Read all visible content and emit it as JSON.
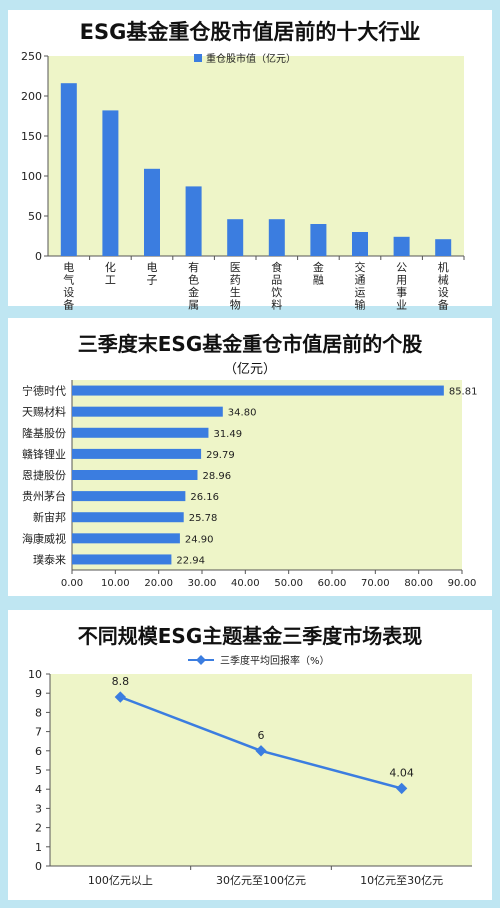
{
  "chart_data": [
    {
      "type": "bar",
      "title": "ESG基金重仓股市值居前的十大行业",
      "legend": "重仓股市值（亿元）",
      "categories": [
        "电气设备",
        "化工",
        "电子",
        "有色金属",
        "医药生物",
        "食品饮料",
        "金融",
        "交通运输",
        "公用事业",
        "机械设备"
      ],
      "values": [
        216,
        182,
        109,
        87,
        46,
        46,
        40,
        30,
        24,
        21
      ],
      "ylim": [
        0,
        250
      ],
      "yticks": [
        "0",
        "50",
        "100",
        "150",
        "200",
        "250"
      ],
      "bar_color": "#3b7de0",
      "plot_bg": "#eef5c8"
    },
    {
      "type": "bar",
      "orientation": "horizontal",
      "title": "三季度末ESG基金重仓市值居前的个股",
      "subtitle": "（亿元）",
      "categories": [
        "宁德时代",
        "天赐材料",
        "隆基股份",
        "赣锋锂业",
        "恩捷股份",
        "贵州茅台",
        "新宙邦",
        "海康威视",
        "璞泰来"
      ],
      "values": [
        85.81,
        34.8,
        31.49,
        29.79,
        28.96,
        26.16,
        25.78,
        24.9,
        22.94
      ],
      "value_labels": [
        "85.81",
        "34.80",
        "31.49",
        "29.79",
        "28.96",
        "26.16",
        "25.78",
        "24.90",
        "22.94"
      ],
      "xlim": [
        0,
        90
      ],
      "xticks": [
        "0.00",
        "10.00",
        "20.00",
        "30.00",
        "40.00",
        "50.00",
        "60.00",
        "70.00",
        "80.00",
        "90.00"
      ],
      "bar_color": "#3b7de0",
      "plot_bg": "#eef5c8"
    },
    {
      "type": "line",
      "title": "不同规模ESG主题基金三季度市场表现",
      "legend": "三季度平均回报率（%）",
      "categories": [
        "100亿元以上",
        "30亿元至100亿元",
        "10亿元至30亿元"
      ],
      "values": [
        8.8,
        6,
        4.04
      ],
      "value_labels": [
        "8.8",
        "6",
        "4.04"
      ],
      "ylim": [
        0,
        10
      ],
      "yticks": [
        "0",
        "1",
        "2",
        "3",
        "4",
        "5",
        "6",
        "7",
        "8",
        "9",
        "10"
      ],
      "line_color": "#3b7de0",
      "plot_bg": "#eef5c8"
    }
  ]
}
